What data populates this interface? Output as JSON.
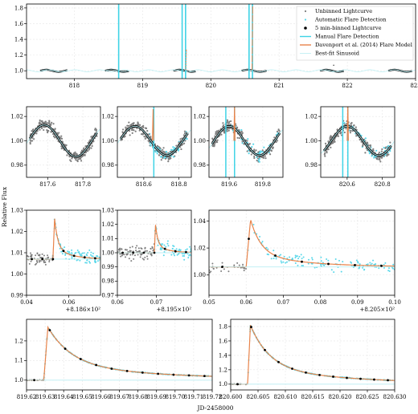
{
  "figure": {
    "ylabel": "Relative Flux",
    "xlabel": "JD-2458000"
  },
  "colors": {
    "unbinned": "#7f7f7f",
    "auto": "#5ad8ea",
    "binned": "#000000",
    "manual": "#3fd3e6",
    "model": "#e8834a",
    "sinusoid": "#b9eef3"
  },
  "chart_data": [
    {
      "id": "overview",
      "type": "scatter",
      "legend_position": "top-right",
      "legend": [
        "Unbinned Lightcurve",
        "Automatic Flare Detection",
        "5 min-binned Lightcurve",
        "Manual Flare Detection",
        "Davenport et al. (2014) Flare Model",
        "Best-fit Sinusoid"
      ],
      "xlim": [
        817.3,
        823.0
      ],
      "ylim": [
        0.9,
        1.85
      ],
      "xticks": [
        818,
        819,
        820,
        821,
        822,
        823
      ],
      "xticklabels": [
        "818",
        "819",
        "820",
        "821",
        "822",
        "823"
      ],
      "yticks": [
        1.0,
        1.2,
        1.4,
        1.6,
        1.8
      ],
      "yticklabels": [
        "1.0",
        "1.2",
        "1.4",
        "1.6",
        "1.8"
      ],
      "segments": [
        [
          817.5,
          817.9
        ],
        [
          818.45,
          818.8
        ],
        [
          819.45,
          819.78
        ],
        [
          820.45,
          820.82
        ],
        [
          821.6,
          821.95
        ],
        [
          822.6,
          822.95
        ]
      ],
      "manual_lines": [
        818.65,
        819.58,
        819.63,
        820.56,
        820.61
      ],
      "flares": [
        {
          "t": 819.632,
          "peak": 1.27
        },
        {
          "t": 820.604,
          "peak": 1.82
        }
      ],
      "grid": true
    },
    {
      "id": "zoom1",
      "type": "scatter",
      "xlim": [
        817.48,
        817.9
      ],
      "ylim": [
        0.97,
        1.028
      ],
      "xticks": [
        817.6,
        817.8
      ],
      "xticklabels": [
        "817.6",
        "817.8"
      ],
      "yticks": [
        0.98,
        1.0,
        1.02
      ],
      "yticklabels": [
        "0.98",
        "1.00",
        "1.02"
      ],
      "sinusoid": {
        "amp": 0.013,
        "period": 0.36,
        "phase_t": 817.58
      },
      "manual_lines": [],
      "flares": [],
      "grid": true
    },
    {
      "id": "zoom2",
      "type": "scatter",
      "xlim": [
        818.45,
        818.87
      ],
      "ylim": [
        0.97,
        1.028
      ],
      "xticks": [
        818.6,
        818.8
      ],
      "xticklabels": [
        "818.6",
        "818.8"
      ],
      "yticks": [
        0.98,
        1.0,
        1.02
      ],
      "yticklabels": [
        "0.98",
        "1.00",
        "1.02"
      ],
      "sinusoid": {
        "amp": 0.012,
        "period": 0.36,
        "phase_t": 818.55
      },
      "manual_lines": [
        818.657
      ],
      "flares": [
        {
          "t": 818.653,
          "peak": 1.026
        }
      ],
      "grid": true
    },
    {
      "id": "zoom3",
      "type": "scatter",
      "xlim": [
        819.48,
        819.92
      ],
      "ylim": [
        0.97,
        1.028
      ],
      "xticks": [
        819.6,
        819.8
      ],
      "xticklabels": [
        "819.6",
        "819.8"
      ],
      "yticks": [
        0.98,
        1.0,
        1.02
      ],
      "yticklabels": [
        "0.98",
        "1.00",
        "1.02"
      ],
      "sinusoid": {
        "amp": 0.012,
        "period": 0.36,
        "phase_t": 819.6
      },
      "manual_lines": [
        819.58,
        819.632
      ],
      "flares": [
        {
          "t": 819.632,
          "peak": 1.03
        }
      ],
      "grid": true
    },
    {
      "id": "zoom4",
      "type": "scatter",
      "xlim": [
        820.45,
        820.87
      ],
      "ylim": [
        0.97,
        1.028
      ],
      "xticks": [
        820.6,
        820.8
      ],
      "xticklabels": [
        "820.6",
        "820.8"
      ],
      "yticks": [
        0.98,
        1.0,
        1.02
      ],
      "yticklabels": [
        "0.98",
        "1.00",
        "1.02"
      ],
      "sinusoid": {
        "amp": 0.012,
        "period": 0.36,
        "phase_t": 820.6
      },
      "manual_lines": [
        820.575,
        820.604
      ],
      "flares": [
        {
          "t": 820.604,
          "peak": 1.03
        }
      ],
      "grid": true
    },
    {
      "id": "detail1",
      "type": "scatter",
      "xlim": [
        818.64,
        818.675
      ],
      "ylim": [
        0.99,
        1.03
      ],
      "xticks": [
        818.64,
        818.66
      ],
      "xticklabels": [
        "0.04",
        "0.06"
      ],
      "offset_text": "+8.186×10²",
      "yticks": [
        0.99,
        1.0,
        1.01,
        1.02,
        1.03
      ],
      "yticklabels": [
        "0.99",
        "1.00",
        "1.01",
        "1.02",
        "1.03"
      ],
      "base": 1.007,
      "flare": {
        "t": 818.6533,
        "peak": 1.026,
        "rise": 0.0008,
        "decay": 0.0015
      },
      "grid": true
    },
    {
      "id": "detail2",
      "type": "scatter",
      "xlim": [
        819.556,
        819.575
      ],
      "ylim": [
        0.97,
        1.03
      ],
      "xticks": [
        819.556,
        819.566
      ],
      "xticklabels": [
        "0.06",
        "0.07"
      ],
      "offset_text": "+8.195×10²",
      "yticks": [
        0.97,
        0.98,
        0.99,
        1.0,
        1.01,
        1.02,
        1.03
      ],
      "yticklabels": [
        "0.97",
        "0.98",
        "0.99",
        "1.00",
        "1.01",
        "1.02",
        "1.03"
      ],
      "base": 1.0,
      "flare": {
        "t": 819.5658,
        "peak": 1.02,
        "rise": 0.0003,
        "decay": 0.0006
      },
      "grid": true
    },
    {
      "id": "detail3",
      "type": "scatter",
      "xlim": [
        820.555,
        820.605
      ],
      "ylim": [
        0.985,
        1.048
      ],
      "xticks": [
        820.555,
        820.565,
        820.575,
        820.585,
        820.595,
        820.605
      ],
      "xticklabels": [
        "0.05",
        "0.06",
        "0.07",
        "0.08",
        "0.09",
        "0.10"
      ],
      "offset_text": "+8.205×10²",
      "yticks": [
        1.0,
        1.02,
        1.04
      ],
      "yticklabels": [
        "1.00",
        "1.02",
        "1.04"
      ],
      "base": 1.006,
      "flare": {
        "t": 820.5662,
        "peak": 1.041,
        "rise": 0.0012,
        "decay": 0.0028
      },
      "grid": true
    },
    {
      "id": "big1",
      "type": "line",
      "xlim": [
        819.62,
        819.72
      ],
      "ylim": [
        0.95,
        1.31
      ],
      "xticks": [
        819.62,
        819.63,
        819.64,
        819.65,
        819.66,
        819.67,
        819.68,
        819.69,
        819.7,
        819.71,
        819.72
      ],
      "xticklabels": [
        "819.62",
        "819.63",
        "819.64",
        "819.65",
        "819.66",
        "819.67",
        "819.68",
        "819.69",
        "819.70",
        "819.71",
        "819.72"
      ],
      "yticks": [
        1.0,
        1.1,
        1.2
      ],
      "yticklabels": [
        "1.0",
        "1.1",
        "1.2"
      ],
      "base": 1.0,
      "flare": {
        "t": 819.6315,
        "peak": 1.27,
        "rise": 0.0022,
        "decay": 0.013
      },
      "grid": true
    },
    {
      "id": "big2",
      "type": "line",
      "xlim": [
        820.6,
        820.63
      ],
      "ylim": [
        0.92,
        1.9
      ],
      "xticks": [
        820.6,
        820.605,
        820.61,
        820.615,
        820.62,
        820.625,
        820.63
      ],
      "xticklabels": [
        "820.600",
        "820.605",
        "820.610",
        "820.615",
        "820.620",
        "820.625",
        "820.630"
      ],
      "yticks": [
        1.0,
        1.2,
        1.4,
        1.6,
        1.8
      ],
      "yticklabels": [
        "1.0",
        "1.2",
        "1.4",
        "1.6",
        "1.8"
      ],
      "base": 1.0,
      "flare": {
        "t": 820.6036,
        "peak": 1.82,
        "rise": 0.0005,
        "decay": 0.0035
      },
      "grid": true
    }
  ]
}
